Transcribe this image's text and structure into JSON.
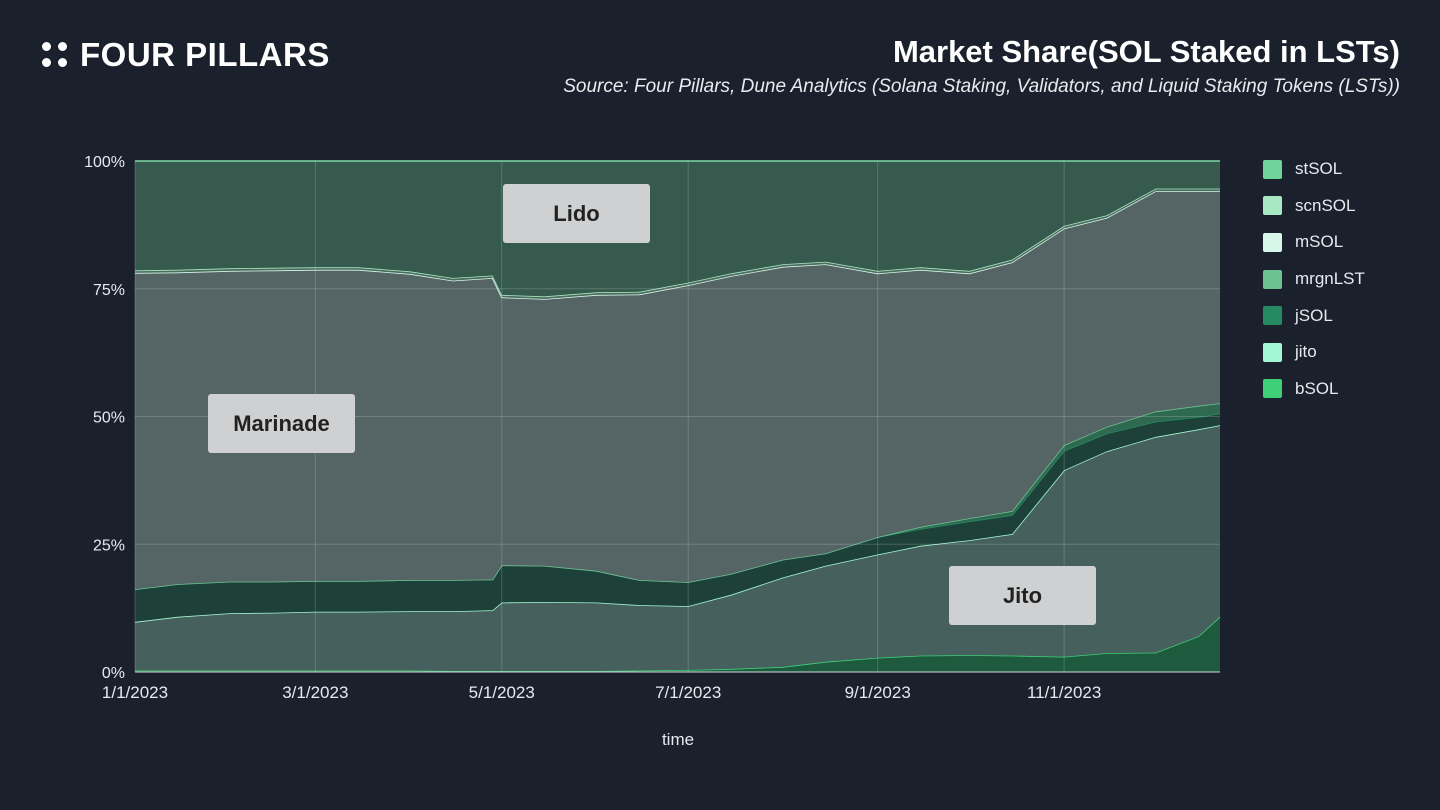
{
  "header": {
    "brand": "FOUR PILLARS",
    "title": "Market Share(SOL Staked in LSTs)",
    "subtitle": "Source: Four Pillars, Dune Analytics (Solana Staking, Validators, and Liquid Staking Tokens (LSTs))"
  },
  "colors": {
    "background": "#1b212c",
    "stSOL": "#6fd49a",
    "scnSOL": "#a8e8c2",
    "mSOL": "#d6f7ea",
    "mrgnLST": "#6cc192",
    "jSOL": "#258a62",
    "jito": "#a4f7d3",
    "bSOL": "#3fcf78"
  },
  "annotations": {
    "lido": "Lido",
    "marinade": "Marinade",
    "jito": "Jito"
  },
  "chart_data": {
    "type": "area",
    "stacked": true,
    "normalized": true,
    "title": "Market Share(SOL Staked in LSTs)",
    "xlabel": "time",
    "ylabel": "",
    "x_ticks": [
      "1/1/2023",
      "3/1/2023",
      "5/1/2023",
      "7/1/2023",
      "9/1/2023",
      "11/1/2023"
    ],
    "y_ticks": [
      "0%",
      "25%",
      "50%",
      "75%",
      "100%"
    ],
    "ylim": [
      0,
      100
    ],
    "x_range": [
      "2023-01-01",
      "2023-12-22"
    ],
    "legend_position": "right",
    "grid": true,
    "x": [
      "2023-01-01",
      "2023-01-15",
      "2023-02-01",
      "2023-02-15",
      "2023-03-01",
      "2023-03-15",
      "2023-04-01",
      "2023-04-15",
      "2023-04-28",
      "2023-05-01",
      "2023-05-15",
      "2023-06-01",
      "2023-06-15",
      "2023-07-01",
      "2023-07-15",
      "2023-08-01",
      "2023-08-15",
      "2023-09-01",
      "2023-09-15",
      "2023-10-01",
      "2023-10-15",
      "2023-11-01",
      "2023-11-15",
      "2023-12-01",
      "2023-12-15",
      "2023-12-22"
    ],
    "series": [
      {
        "name": "bSOL",
        "values": [
          0.3,
          0.3,
          0.3,
          0.3,
          0.3,
          0.3,
          0.3,
          0.2,
          0.2,
          0.2,
          0.2,
          0.2,
          0.3,
          0.4,
          0.6,
          1.0,
          2.0,
          2.8,
          3.2,
          3.3,
          3.2,
          3.0,
          3.7,
          3.8,
          7.0,
          10.8
        ]
      },
      {
        "name": "jito",
        "values": [
          9.5,
          10.5,
          11.2,
          11.3,
          11.5,
          11.5,
          11.6,
          11.7,
          11.9,
          13.4,
          13.5,
          13.4,
          12.8,
          12.5,
          14.5,
          17.5,
          18.8,
          20.2,
          21.5,
          22.5,
          23.8,
          36.5,
          39.5,
          42.2,
          40.5,
          37.5
        ]
      },
      {
        "name": "jSOL",
        "values": [
          6.4,
          6.4,
          6.2,
          6.1,
          6.0,
          6.0,
          6.1,
          6.1,
          6.0,
          7.3,
          7.1,
          6.2,
          4.9,
          4.7,
          4.1,
          3.5,
          2.4,
          3.4,
          3.3,
          3.7,
          3.7,
          3.8,
          3.5,
          3.0,
          2.4,
          2.3
        ]
      },
      {
        "name": "mrgnLST",
        "values": [
          0,
          0,
          0,
          0,
          0,
          0,
          0,
          0,
          0,
          0,
          0,
          0,
          0,
          0,
          0,
          0,
          0,
          0,
          0.4,
          0.6,
          0.8,
          1.1,
          1.3,
          2.0,
          2.2,
          2.0
        ]
      },
      {
        "name": "mSOL",
        "values": [
          61.9,
          61.0,
          60.8,
          60.9,
          60.9,
          60.9,
          59.9,
          58.6,
          59.0,
          52.4,
          52.2,
          54.0,
          55.9,
          58.1,
          58.3,
          57.3,
          56.6,
          51.6,
          50.3,
          47.9,
          48.7,
          42.4,
          40.9,
          43.1,
          42.0,
          41.5
        ]
      },
      {
        "name": "scnSOL",
        "values": [
          0.5,
          0.5,
          0.5,
          0.5,
          0.5,
          0.5,
          0.5,
          0.5,
          0.5,
          0.5,
          0.5,
          0.5,
          0.5,
          0.5,
          0.5,
          0.5,
          0.5,
          0.5,
          0.5,
          0.5,
          0.5,
          0.5,
          0.5,
          0.5,
          0.5,
          0.5
        ]
      },
      {
        "name": "stSOL",
        "values": [
          21.4,
          21.3,
          21.0,
          20.9,
          20.8,
          20.8,
          21.6,
          22.9,
          22.4,
          26.2,
          26.5,
          25.7,
          25.6,
          23.8,
          22.0,
          20.2,
          19.7,
          21.5,
          20.8,
          21.5,
          19.3,
          12.7,
          10.6,
          5.4,
          5.4,
          5.4
        ]
      }
    ]
  }
}
